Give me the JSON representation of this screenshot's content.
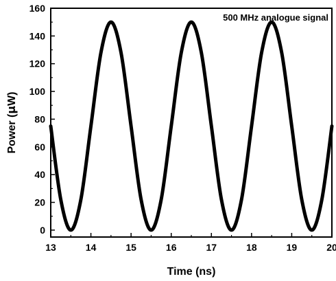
{
  "chart_data": {
    "type": "line",
    "title": "",
    "annotation": "500 MHz analogue signal",
    "xlabel": "Time (ns)",
    "ylabel_prefix": "Power (",
    "ylabel_unit": "μ",
    "ylabel_suffix": "W)",
    "xlim": [
      13,
      20
    ],
    "ylim": [
      -5,
      160
    ],
    "x_ticks": [
      13,
      14,
      15,
      16,
      17,
      18,
      19,
      20
    ],
    "y_ticks": [
      0,
      20,
      40,
      60,
      80,
      100,
      120,
      140,
      160
    ],
    "grid": false,
    "series": [
      {
        "color": "#000000",
        "x": [
          13.0,
          13.25,
          13.5,
          13.75,
          14.0,
          14.25,
          14.5,
          14.75,
          15.0,
          15.25,
          15.5,
          15.75,
          16.0,
          16.25,
          16.5,
          16.75,
          17.0,
          17.25,
          17.5,
          17.75,
          18.0,
          18.25,
          18.5,
          18.75,
          19.0,
          19.25,
          19.5,
          19.75,
          20.0
        ],
        "y": [
          75,
          22,
          0,
          22,
          75,
          128,
          150,
          128,
          75,
          22,
          0,
          22,
          75,
          128,
          150,
          128,
          75,
          22,
          0,
          22,
          75,
          128,
          150,
          128,
          75,
          22,
          0,
          22,
          75
        ]
      }
    ]
  }
}
